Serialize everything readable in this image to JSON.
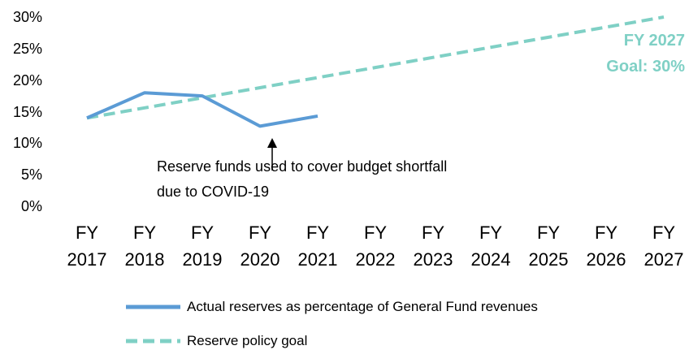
{
  "chart_data": {
    "type": "line",
    "categories": [
      "FY 2017",
      "FY 2018",
      "FY 2019",
      "FY 2020",
      "FY 2021",
      "FY 2022",
      "FY 2023",
      "FY 2024",
      "FY 2025",
      "FY 2026",
      "FY 2027"
    ],
    "series": [
      {
        "name": "Actual reserves as percentage of General Fund revenues",
        "color": "#5b9bd5",
        "dashed": false,
        "values": [
          14,
          18,
          17.5,
          12.7,
          14.3,
          null,
          null,
          null,
          null,
          null,
          null
        ]
      },
      {
        "name": "Reserve policy goal",
        "color": "#7fd0c5",
        "dashed": true,
        "values": [
          14,
          15.6,
          17.2,
          18.8,
          20.4,
          22,
          23.6,
          25.2,
          26.8,
          28.4,
          30
        ]
      }
    ],
    "ylim": [
      0,
      30
    ],
    "yticks": [
      {
        "value": 0,
        "label": "0%"
      },
      {
        "value": 5,
        "label": "5%"
      },
      {
        "value": 10,
        "label": "10%"
      },
      {
        "value": 15,
        "label": "15%"
      },
      {
        "value": 20,
        "label": "20%"
      },
      {
        "value": 25,
        "label": "25%"
      },
      {
        "value": 30,
        "label": "30%"
      }
    ],
    "annotations": [
      {
        "text": "Reserve funds used to cover budget shortfall due to COVID-19"
      },
      {
        "text": "FY 2027 Goal: 30%"
      }
    ]
  }
}
